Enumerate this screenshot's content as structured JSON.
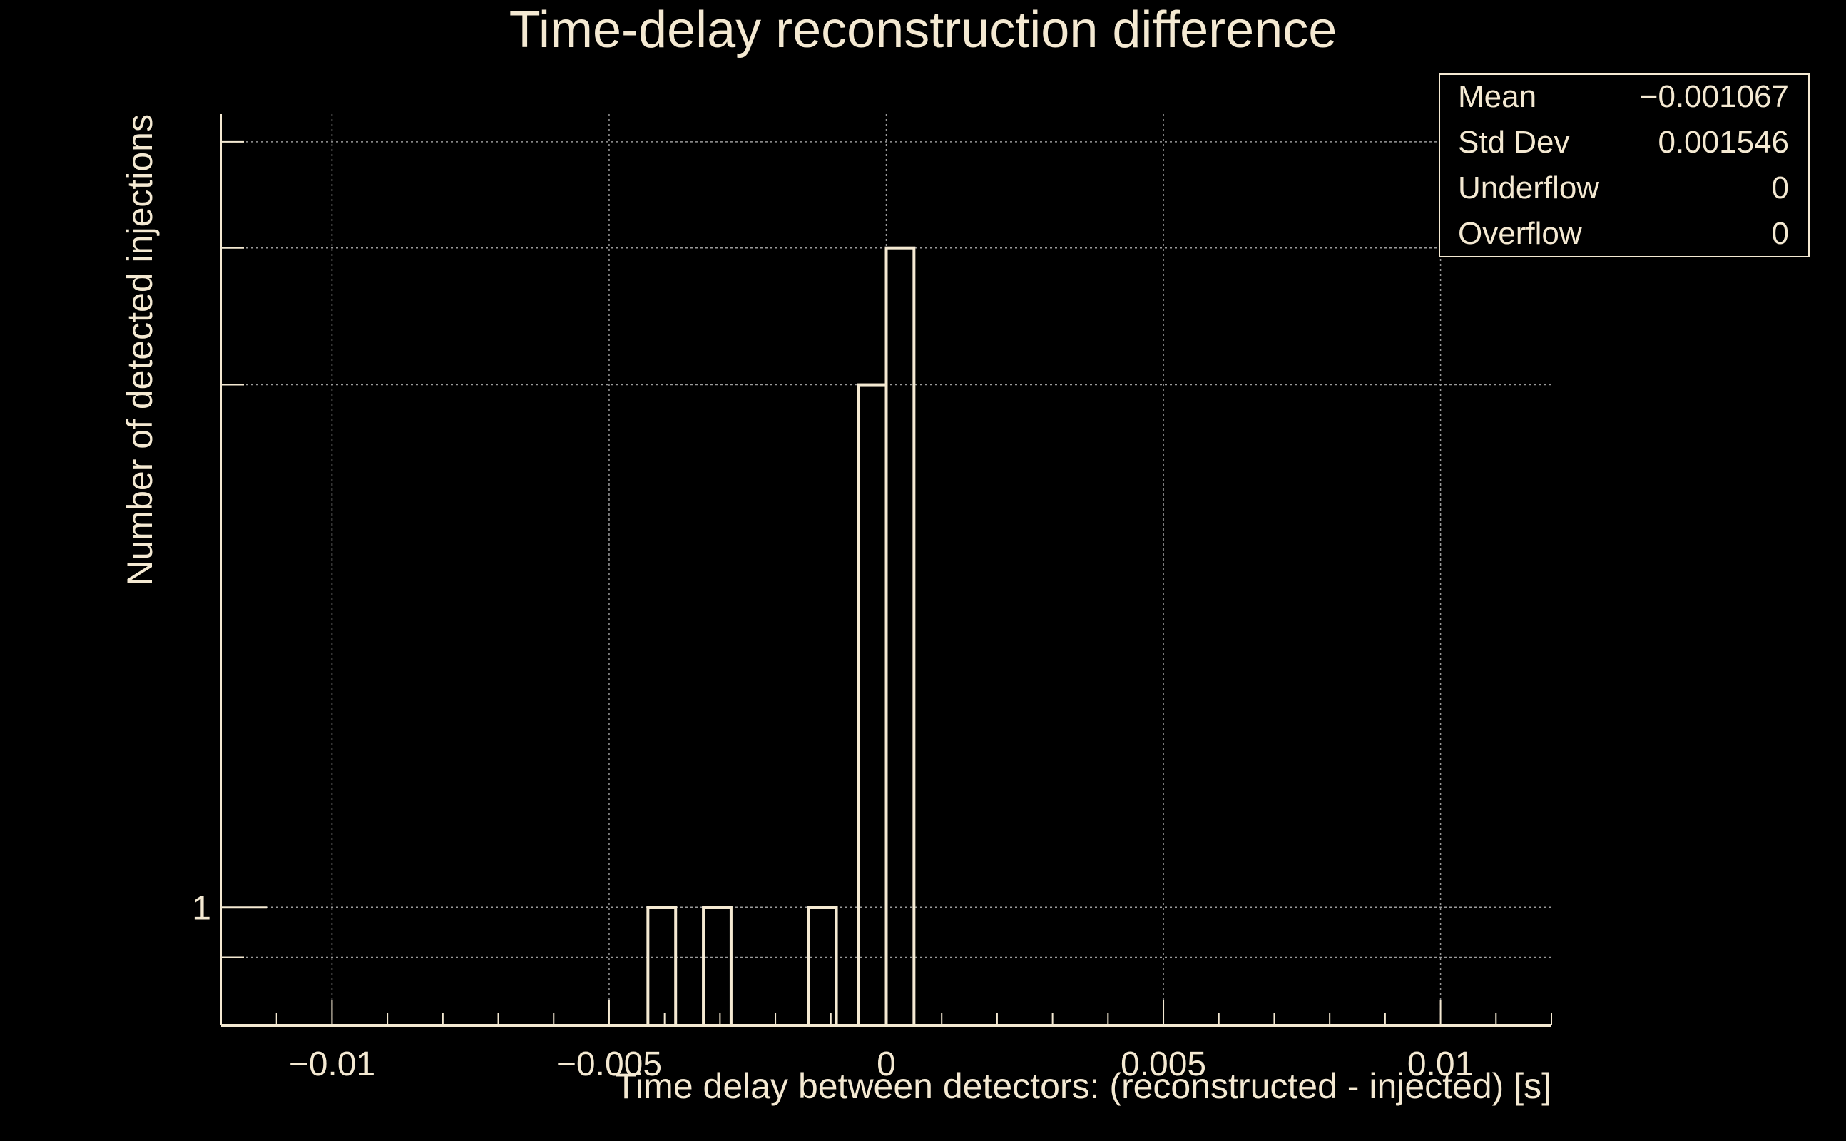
{
  "colors": {
    "background": "#000000",
    "foreground": "#f4e9d2",
    "grid": "#9a9a9a"
  },
  "chart_data": {
    "type": "bar",
    "title": "Time-delay reconstruction difference",
    "xlabel": "Time delay between detectors: (reconstructed - injected) [s]",
    "ylabel": "Number of detected injections",
    "xlim": [
      -0.012,
      0.012
    ],
    "ylim": [
      0.78,
      5.3
    ],
    "y_scale": "log",
    "bin_width": 0.0005,
    "bins": [
      {
        "x0": -0.0043,
        "x1": -0.0038,
        "value": 1
      },
      {
        "x0": -0.0033,
        "x1": -0.0028,
        "value": 1
      },
      {
        "x0": -0.0014,
        "x1": -0.0009,
        "value": 1
      },
      {
        "x0": -0.0005,
        "x1": 0.0,
        "value": 3
      },
      {
        "x0": 0.0,
        "x1": 0.0005,
        "value": 4
      }
    ],
    "x_ticks": [
      {
        "value": -0.01,
        "label": "−0.01"
      },
      {
        "value": -0.005,
        "label": "−0.005"
      },
      {
        "value": 0,
        "label": "0"
      },
      {
        "value": 0.005,
        "label": "0.005"
      },
      {
        "value": 0.01,
        "label": "0.01"
      }
    ],
    "y_ticks": [
      {
        "value": 1,
        "label": "1"
      }
    ],
    "y_grid_values": [
      0.9,
      1,
      3,
      4,
      5
    ],
    "grid": true,
    "stats_box": {
      "position": "top-right",
      "rows": [
        {
          "label": "Mean",
          "value": "−0.001067"
        },
        {
          "label": "Std Dev",
          "value": "0.001546"
        },
        {
          "label": "Underflow",
          "value": "0"
        },
        {
          "label": "Overflow",
          "value": "0"
        }
      ]
    }
  }
}
